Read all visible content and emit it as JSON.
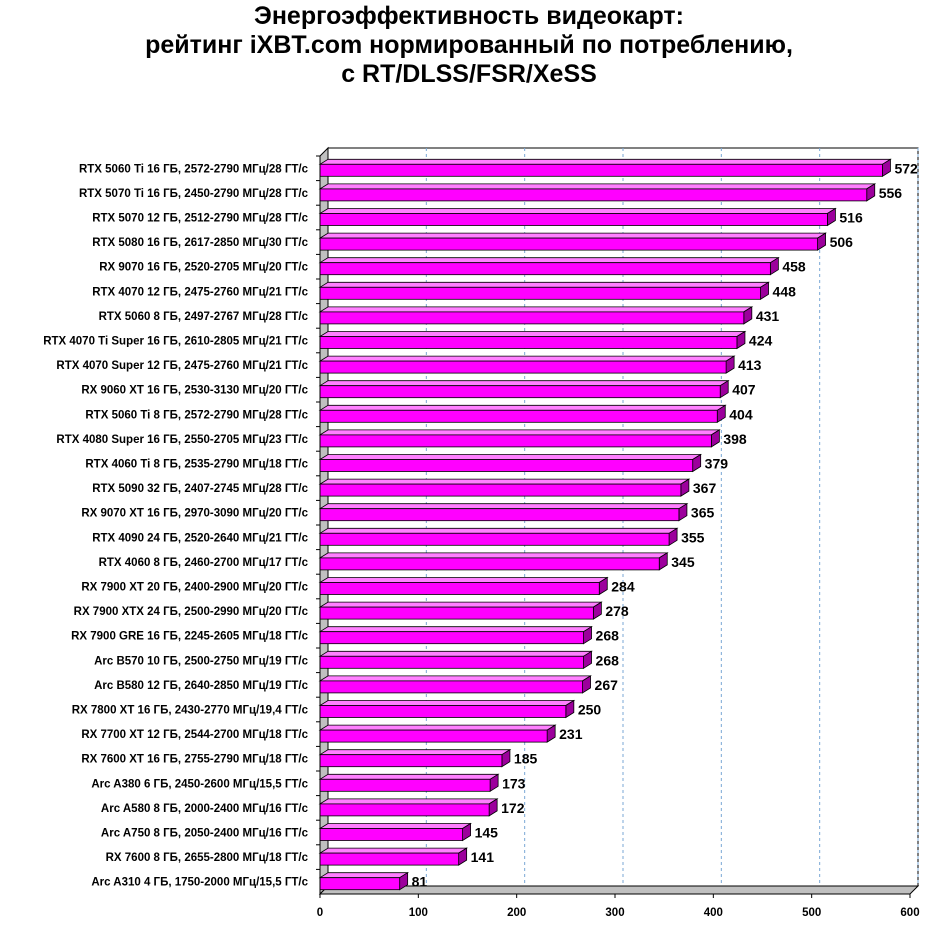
{
  "chart_data": {
    "type": "bar",
    "orientation": "horizontal",
    "title_lines": [
      "Энергоэффективность видеокарт:",
      "рейтинг iXBT.com нормированный по потреблению,",
      "с RT/DLSS/FSR/XeSS"
    ],
    "categories": [
      "RTX 5060 Ti 16 ГБ, 2572-2790 МГц/28 ГТ/с",
      "RTX 5070 Ti 16 ГБ, 2450-2790 МГц/28 ГТ/с",
      "RTX 5070 12 ГБ, 2512-2790 МГц/28 ГТ/с",
      "RTX 5080 16 ГБ, 2617-2850 МГц/30 ГТ/с",
      "RX 9070 16 ГБ, 2520-2705 МГц/20 ГТ/с",
      "RTX 4070 12 ГБ, 2475-2760 МГц/21 ГТ/с",
      "RTX 5060 8 ГБ, 2497-2767 МГц/28 ГТ/с",
      "RTX 4070 Ti Super 16 ГБ, 2610-2805 МГц/21 ГТ/с",
      "RTX 4070 Super 12 ГБ, 2475-2760 МГц/21 ГТ/с",
      "RX 9060 XT 16 ГБ, 2530-3130 МГц/20 ГТ/с",
      "RTX 5060 Ti 8 ГБ, 2572-2790 МГц/28 ГТ/с",
      "RTX 4080 Super 16 ГБ, 2550-2705 МГц/23 ГТ/с",
      "RTX 4060 Ti 8 ГБ, 2535-2790 МГц/18 ГТ/с",
      "RTX 5090 32 ГБ, 2407-2745 МГц/28 ГТ/с",
      "RX 9070 XT 16 ГБ, 2970-3090 МГц/20 ГТ/с",
      "RTX 4090 24 ГБ, 2520-2640 МГц/21 ГТ/с",
      "RTX 4060 8 ГБ, 2460-2700 МГц/17 ГТ/с",
      "RX 7900 XT 20 ГБ, 2400-2900 МГц/20 ГТ/с",
      "RX 7900 XTX 24 ГБ, 2500-2990 МГц/20 ГТ/с",
      "RX 7900 GRE 16 ГБ, 2245-2605 МГц/18 ГТ/с",
      "Arc B570 10 ГБ, 2500-2750 МГц/19 ГТ/с",
      "Arc B580 12 ГБ, 2640-2850 МГц/19 ГТ/с",
      "RX 7800 XT 16 ГБ, 2430-2770 МГц/19,4 ГТ/с",
      "RX 7700 XT 12 ГБ, 2544-2700 МГц/18 ГТ/с",
      "RX 7600 XT 16 ГБ, 2755-2790 МГц/18 ГТ/с",
      "Arc A380 6 ГБ, 2450-2600 МГц/15,5 ГТ/с",
      "Arc A580 8 ГБ, 2000-2400 МГц/16 ГТ/с",
      "Arc A750 8 ГБ, 2050-2400 МГц/16 ГТ/с",
      "RX 7600 8 ГБ, 2655-2800 МГц/18 ГТ/с",
      "Arc A310 4 ГБ, 1750-2000 МГц/15,5 ГТ/с"
    ],
    "values": [
      572,
      556,
      516,
      506,
      458,
      448,
      431,
      424,
      413,
      407,
      404,
      398,
      379,
      367,
      365,
      355,
      345,
      284,
      278,
      268,
      268,
      267,
      250,
      231,
      185,
      173,
      172,
      145,
      141,
      81
    ],
    "xlim": [
      0,
      600
    ],
    "x_ticks": [
      0,
      100,
      200,
      300,
      400,
      500,
      600
    ],
    "grid": "vertical dashed",
    "legend": "none",
    "colors": {
      "bar_face": "#ff00ff",
      "bar_side": "#9c009c",
      "bar_top": "#ff80ff",
      "grid": "#7aa7d6",
      "wall": "#c0c0c0"
    }
  }
}
